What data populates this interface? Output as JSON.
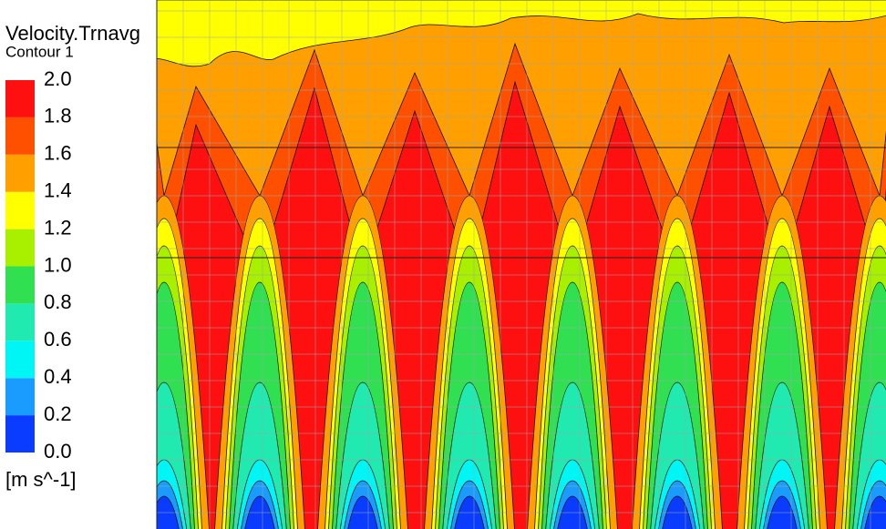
{
  "chart_data": {
    "type": "contour",
    "title": "Velocity.Trnavg",
    "subtitle": "Contour 1",
    "unit_label": "[m s^-1]",
    "levels": [
      {
        "value": 0,
        "label": "0.0"
      },
      {
        "value": 0.2,
        "label": "0.2"
      },
      {
        "value": 0.4,
        "label": "0.4"
      },
      {
        "value": 0.6,
        "label": "0.6"
      },
      {
        "value": 0.8,
        "label": "0.8"
      },
      {
        "value": 1,
        "label": "1.0"
      },
      {
        "value": 1.2,
        "label": "1.2"
      },
      {
        "value": 1.4,
        "label": "1.4"
      },
      {
        "value": 1.6,
        "label": "1.6"
      },
      {
        "value": 1.8,
        "label": "1.8"
      },
      {
        "value": 2,
        "label": "2.0"
      }
    ],
    "colors": [
      "#0a3cff",
      "#1a9cff",
      "#00f5f5",
      "#20eab0",
      "#30e050",
      "#a8f000",
      "#ffff00",
      "#ffa000",
      "#ff5000",
      "#ff1010"
    ]
  }
}
